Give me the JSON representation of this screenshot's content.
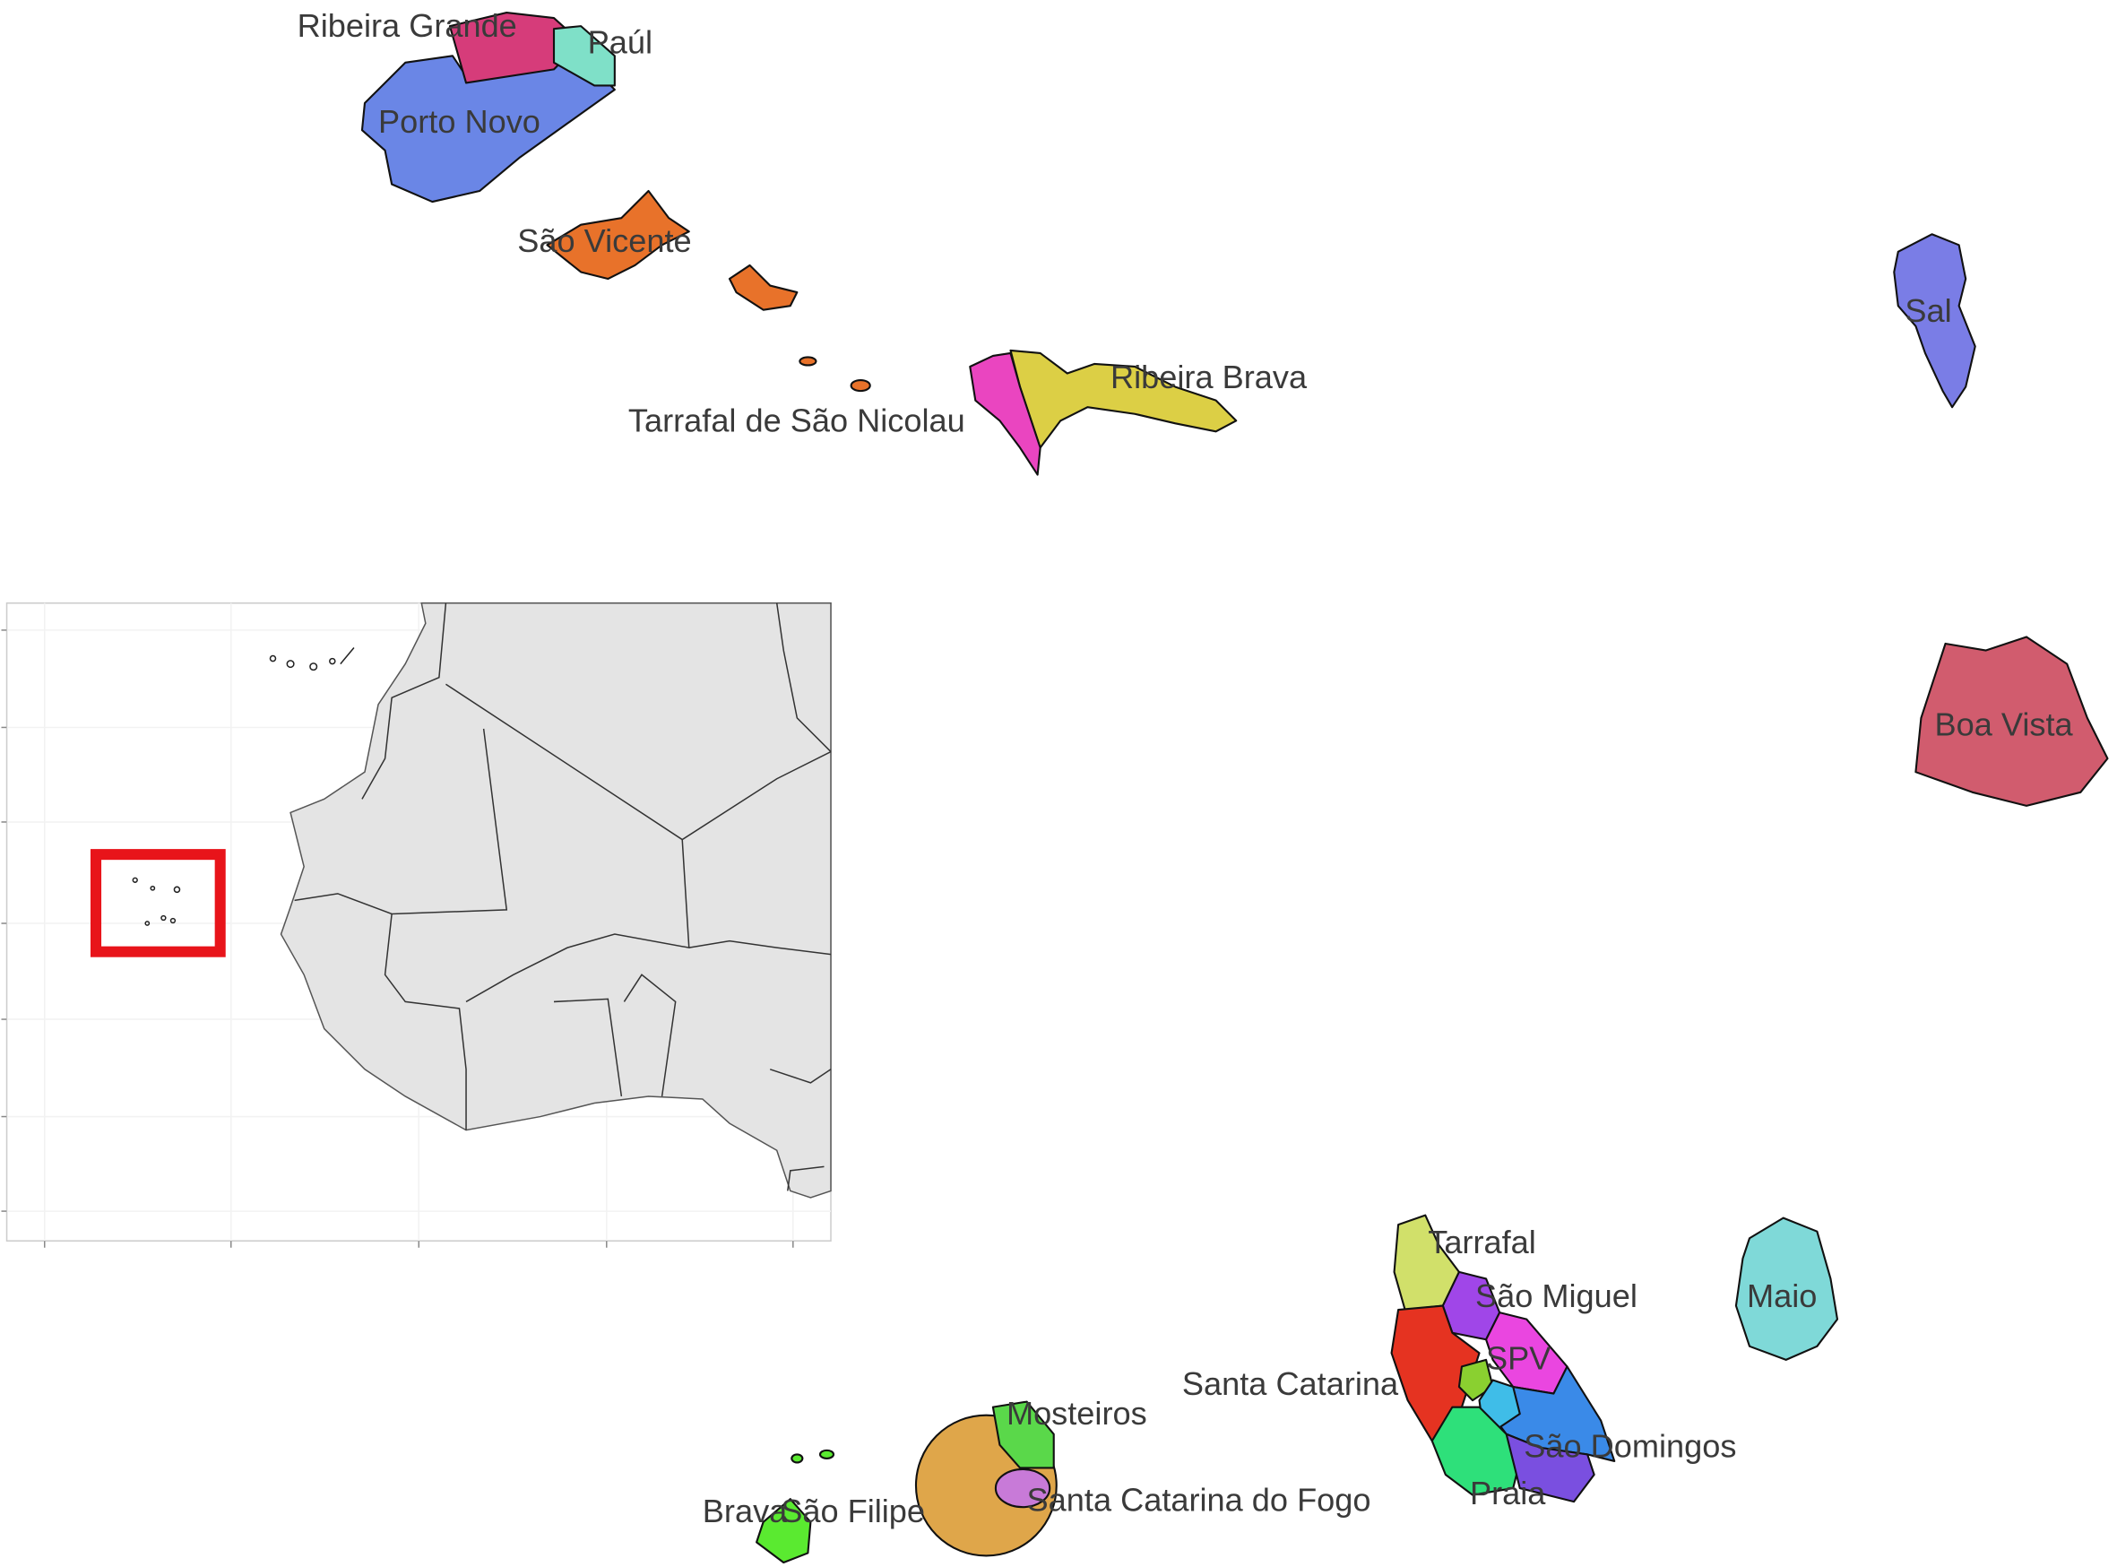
{
  "map": {
    "regions": [
      {
        "label": "Ribeira Grande"
      },
      {
        "label": "Paúl"
      },
      {
        "label": "Porto Novo"
      },
      {
        "label": "São Vicente"
      },
      {
        "label": "Ribeira Brava"
      },
      {
        "label": "Tarrafal de São Nicolau"
      },
      {
        "label": "Sal"
      },
      {
        "label": "Boa Vista"
      },
      {
        "label": "Tarrafal"
      },
      {
        "label": "São Miguel"
      },
      {
        "label": "Maio"
      },
      {
        "label": "SPV"
      },
      {
        "label": "Santa Catarina"
      },
      {
        "label": "Mosteiros"
      },
      {
        "label": "São Domingos"
      },
      {
        "label": "Santa Catarina do Fogo"
      },
      {
        "label": "Praia"
      },
      {
        "label": "Brava"
      },
      {
        "label": "São Filipe"
      }
    ]
  }
}
